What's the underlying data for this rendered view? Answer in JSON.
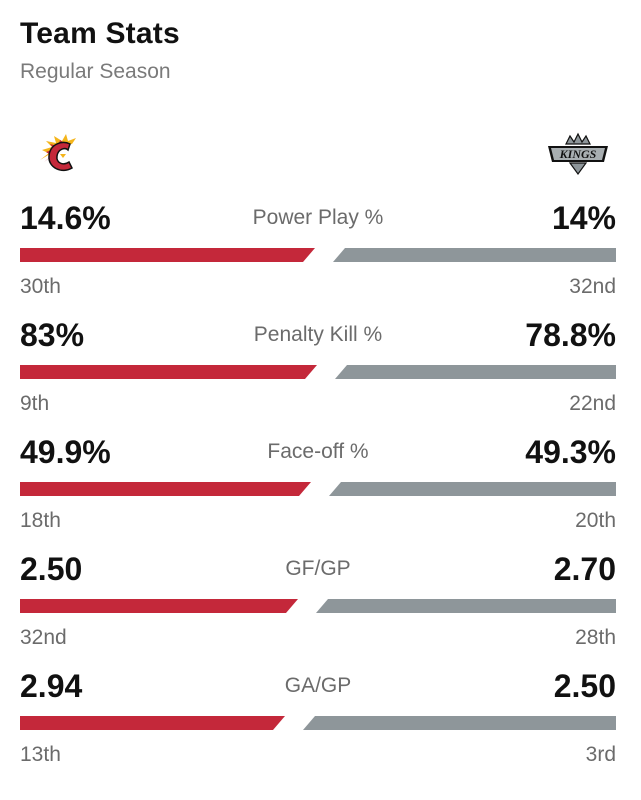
{
  "header": {
    "title": "Team Stats",
    "subtitle": "Regular Season"
  },
  "teams": {
    "home": {
      "logo_icon": "calgary-flames-logo",
      "color": "#c4283a"
    },
    "away": {
      "logo_icon": "la-kings-logo",
      "logo_text": "KINGS",
      "color": "#8e969a"
    }
  },
  "stats": [
    {
      "label": "Power Play %",
      "home_value": "14.6%",
      "away_value": "14%",
      "home_rank": "30th",
      "away_rank": "32nd",
      "home_share": 0.51
    },
    {
      "label": "Penalty Kill %",
      "home_value": "83%",
      "away_value": "78.8%",
      "home_rank": "9th",
      "away_rank": "22nd",
      "home_share": 0.513
    },
    {
      "label": "Face-off %",
      "home_value": "49.9%",
      "away_value": "49.3%",
      "home_rank": "18th",
      "away_rank": "20th",
      "home_share": 0.503
    },
    {
      "label": "GF/GP",
      "home_value": "2.50",
      "away_value": "2.70",
      "home_rank": "32nd",
      "away_rank": "28th",
      "home_share": 0.481
    },
    {
      "label": "GA/GP",
      "home_value": "2.94",
      "away_value": "2.50",
      "home_rank": "13th",
      "away_rank": "3rd",
      "home_share": 0.46
    }
  ]
}
